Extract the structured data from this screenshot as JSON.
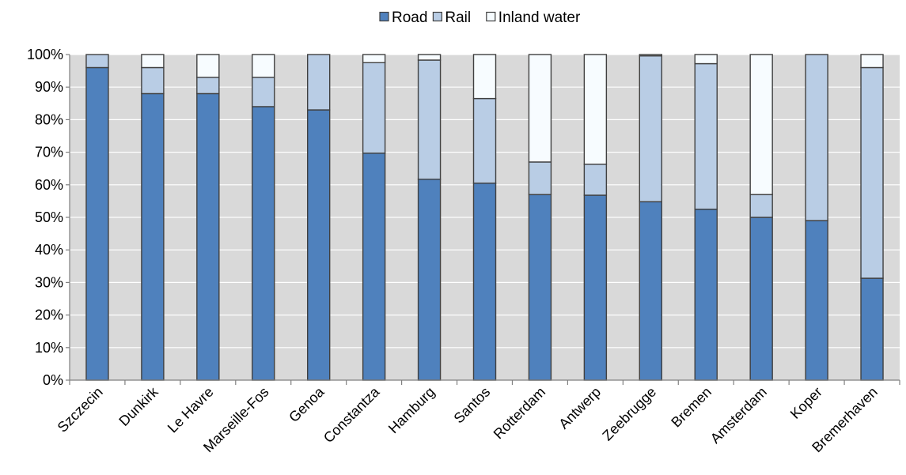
{
  "chart_data": {
    "type": "bar",
    "stacked": true,
    "categories": [
      "Szczecin",
      "Dunkirk",
      "Le Havre",
      "Marseille-Fos",
      "Genoa",
      "Constantza",
      "Hamburg",
      "Santos",
      "Rotterdam",
      "Antwerp",
      "Zeebrugge",
      "Bremen",
      "Amsterdam",
      "Koper",
      "Bremerhaven"
    ],
    "series": [
      {
        "name": "Road",
        "color": "#4F81BD",
        "values": [
          96,
          88,
          88,
          84,
          83,
          69.7,
          61.7,
          60.5,
          57,
          56.8,
          54.8,
          52.5,
          50,
          49,
          31.3
        ]
      },
      {
        "name": "Rail",
        "color": "#B9CDE5",
        "values": [
          4,
          8,
          5,
          9,
          17,
          27.8,
          36.6,
          26,
          10,
          9.5,
          44.8,
          44.7,
          7,
          51,
          64.7
        ]
      },
      {
        "name": "Inland water",
        "color": "#F7FCFF",
        "values": [
          0,
          4,
          7,
          7,
          0,
          2.5,
          1.7,
          13.5,
          33,
          33.7,
          0.4,
          2.8,
          43,
          0,
          4
        ]
      }
    ],
    "ylim": [
      0,
      100
    ],
    "yticks": [
      "0%",
      "10%",
      "20%",
      "30%",
      "40%",
      "50%",
      "60%",
      "70%",
      "80%",
      "90%",
      "100%"
    ],
    "legend_position": "top",
    "grid": true,
    "plot_background": "#D9D9D9"
  }
}
